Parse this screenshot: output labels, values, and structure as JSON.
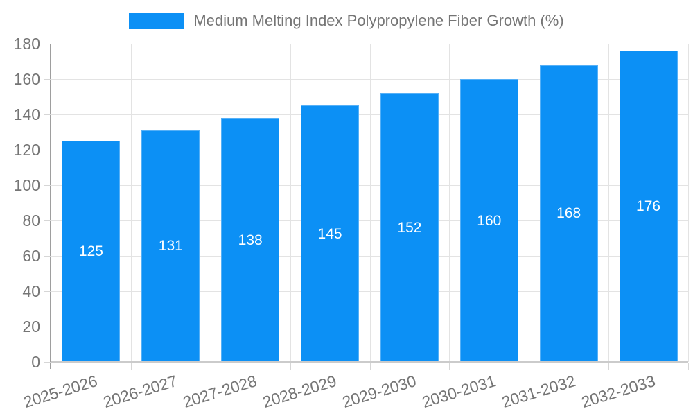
{
  "chart_data": {
    "type": "bar",
    "title": "Medium Melting Index Polypropylene Fiber Growth (%)",
    "categories": [
      "2025-2026",
      "2026-2027",
      "2027-2028",
      "2028-2029",
      "2029-2030",
      "2030-2031",
      "2031-2032",
      "2032-2033"
    ],
    "series": [
      {
        "name": "Medium Melting Index Polypropylene Fiber Growth (%)",
        "values": [
          125,
          131,
          138,
          145,
          152,
          160,
          168,
          176
        ]
      }
    ],
    "value_labels": [
      "125",
      "131",
      "138",
      "145",
      "152",
      "160",
      "168",
      "176"
    ],
    "value_label_position": "inside-center",
    "xlabel": "",
    "ylabel": "",
    "ylim": [
      0,
      180
    ],
    "yticks": [
      0,
      20,
      40,
      60,
      80,
      100,
      120,
      140,
      160,
      180
    ],
    "grid": true,
    "legend_position": "top-center",
    "x_label_rotation_deg": -17,
    "colors": {
      "bar_fill": "#0c90f5",
      "bar_border": "#55b0f7",
      "value_label_text": "#ffffff",
      "axis_text": "#757575",
      "gridline": "#e3e3e3",
      "tick_mark": "#d6d6d6",
      "y_axis_line": "#9e9e9e",
      "x_axis_line": "#cbcbcb",
      "background": "#ffffff"
    }
  }
}
